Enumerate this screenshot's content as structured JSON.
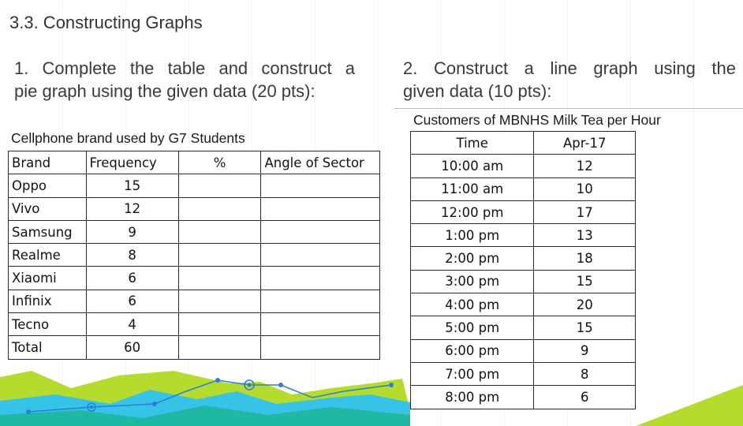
{
  "section_title": "3.3. Constructing Graphs",
  "instruction1": {
    "line1": "1. Complete the table and construct a",
    "line2": "pie graph using the given data (20 pts):"
  },
  "instruction2": {
    "line1": "2. Construct a line graph using the",
    "line2": "given data (10 pts):"
  },
  "table1": {
    "caption": "Cellphone brand used by G7 Students",
    "headers": [
      "Brand",
      "Frequency",
      "%",
      "Angle of Sector"
    ],
    "rows": [
      {
        "brand": "Oppo",
        "frequency": "15"
      },
      {
        "brand": "Vivo",
        "frequency": "12"
      },
      {
        "brand": "Samsung",
        "frequency": "9"
      },
      {
        "brand": "Realme",
        "frequency": "8"
      },
      {
        "brand": "Xiaomi",
        "frequency": "6"
      },
      {
        "brand": "Infinix",
        "frequency": "6"
      },
      {
        "brand": "Tecno",
        "frequency": "4"
      },
      {
        "brand": "Total",
        "frequency": "60"
      }
    ]
  },
  "table2": {
    "caption": "Customers of MBNHS Milk Tea per Hour",
    "headers": [
      "Time",
      "Apr-17"
    ],
    "rows": [
      {
        "time": "10:00 am",
        "value": "12"
      },
      {
        "time": "11:00 am",
        "value": "10"
      },
      {
        "time": "12:00 pm",
        "value": "17"
      },
      {
        "time": "1:00 pm",
        "value": "13"
      },
      {
        "time": "2:00 pm",
        "value": "18"
      },
      {
        "time": "3:00 pm",
        "value": "15"
      },
      {
        "time": "4:00 pm",
        "value": "20"
      },
      {
        "time": "5:00 pm",
        "value": "15"
      },
      {
        "time": "6:00 pm",
        "value": "9"
      },
      {
        "time": "7:00 pm",
        "value": "8"
      },
      {
        "time": "8:00 pm",
        "value": "6"
      }
    ]
  },
  "theme": {
    "green": "#b5dc2c",
    "cyan": "#35c3e7",
    "blue": "#2a7fd4",
    "teal": "#1fb8a3"
  }
}
